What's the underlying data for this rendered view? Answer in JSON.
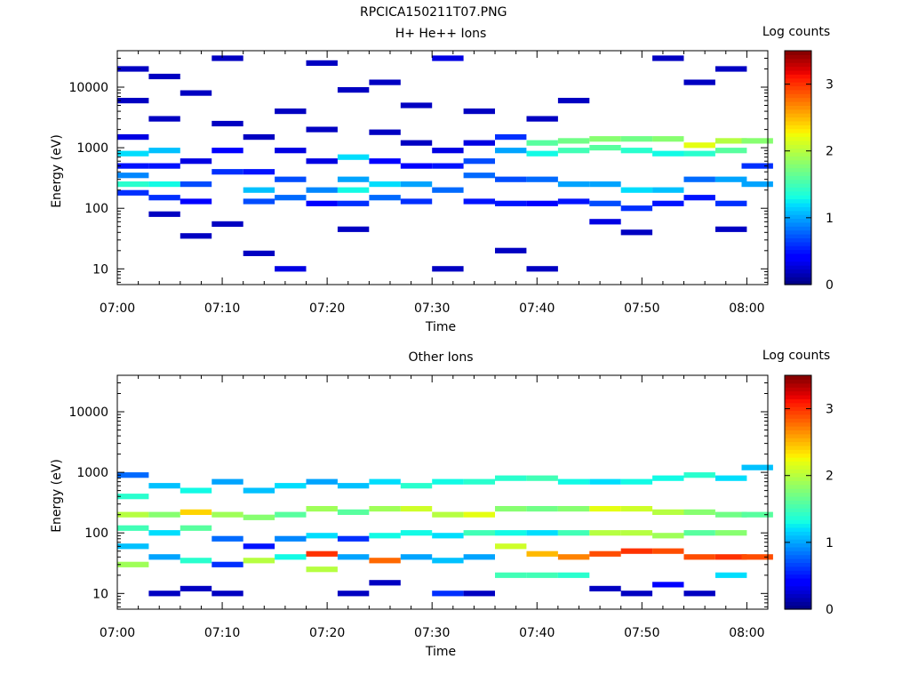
{
  "file_title": "RPCICA150211T07.PNG",
  "chart_data": [
    {
      "type": "heatmap",
      "title": "H+ He++ Ions",
      "xlabel": "Time",
      "ylabel": "Energy (eV)",
      "x_ticks": [
        "07:00",
        "07:10",
        "07:20",
        "07:30",
        "07:40",
        "07:50",
        "08:00"
      ],
      "y_ticks": [
        "10",
        "100",
        "1000",
        "10000"
      ],
      "y_scale": "log",
      "ylim": [
        5.5,
        40000
      ],
      "xlim": [
        "07:00",
        "08:02"
      ],
      "colorbar_label": "Log counts",
      "colorbar_ticks": [
        "0",
        "1",
        "2",
        "3"
      ],
      "colorbar_range": [
        0,
        3.5
      ],
      "colormap": "jet",
      "cells": [
        {
          "t": 1.5,
          "e": 250,
          "v": 1.4
        },
        {
          "t": 1.5,
          "e": 350,
          "v": 0.9
        },
        {
          "t": 1.5,
          "e": 800,
          "v": 1.2
        },
        {
          "t": 1.5,
          "e": 180,
          "v": 0.6
        },
        {
          "t": 1.5,
          "e": 500,
          "v": 0.5
        },
        {
          "t": 1.5,
          "e": 1500,
          "v": 0.3
        },
        {
          "t": 1.5,
          "e": 6000,
          "v": 0.2
        },
        {
          "t": 1.5,
          "e": 20000,
          "v": 0.2
        },
        {
          "t": 4.5,
          "e": 250,
          "v": 1.3
        },
        {
          "t": 4.5,
          "e": 900,
          "v": 1.1
        },
        {
          "t": 4.5,
          "e": 150,
          "v": 0.6
        },
        {
          "t": 4.5,
          "e": 500,
          "v": 0.5
        },
        {
          "t": 4.5,
          "e": 80,
          "v": 0.2
        },
        {
          "t": 4.5,
          "e": 3000,
          "v": 0.2
        },
        {
          "t": 4.5,
          "e": 15000,
          "v": 0.2
        },
        {
          "t": 7.5,
          "e": 250,
          "v": 0.7
        },
        {
          "t": 7.5,
          "e": 130,
          "v": 0.4
        },
        {
          "t": 7.5,
          "e": 35,
          "v": 0.2
        },
        {
          "t": 7.5,
          "e": 600,
          "v": 0.3
        },
        {
          "t": 7.5,
          "e": 8000,
          "v": 0.2
        },
        {
          "t": 10.5,
          "e": 400,
          "v": 0.6
        },
        {
          "t": 10.5,
          "e": 900,
          "v": 0.4
        },
        {
          "t": 10.5,
          "e": 55,
          "v": 0.2
        },
        {
          "t": 10.5,
          "e": 2500,
          "v": 0.2
        },
        {
          "t": 10.5,
          "e": 30000,
          "v": 0.2
        },
        {
          "t": 13.5,
          "e": 200,
          "v": 1.1
        },
        {
          "t": 13.5,
          "e": 130,
          "v": 0.7
        },
        {
          "t": 13.5,
          "e": 400,
          "v": 0.5
        },
        {
          "t": 13.5,
          "e": 18,
          "v": 0.2
        },
        {
          "t": 13.5,
          "e": 1500,
          "v": 0.2
        },
        {
          "t": 16.5,
          "e": 300,
          "v": 0.7
        },
        {
          "t": 16.5,
          "e": 150,
          "v": 0.8
        },
        {
          "t": 16.5,
          "e": 900,
          "v": 0.3
        },
        {
          "t": 16.5,
          "e": 10,
          "v": 0.3
        },
        {
          "t": 16.5,
          "e": 4000,
          "v": 0.2
        },
        {
          "t": 19.5,
          "e": 200,
          "v": 0.9
        },
        {
          "t": 19.5,
          "e": 120,
          "v": 0.4
        },
        {
          "t": 19.5,
          "e": 600,
          "v": 0.3
        },
        {
          "t": 19.5,
          "e": 2000,
          "v": 0.2
        },
        {
          "t": 19.5,
          "e": 25000,
          "v": 0.2
        },
        {
          "t": 22.5,
          "e": 200,
          "v": 1.3
        },
        {
          "t": 22.5,
          "e": 300,
          "v": 1.0
        },
        {
          "t": 22.5,
          "e": 120,
          "v": 0.6
        },
        {
          "t": 22.5,
          "e": 700,
          "v": 1.2
        },
        {
          "t": 22.5,
          "e": 45,
          "v": 0.2
        },
        {
          "t": 22.5,
          "e": 9000,
          "v": 0.2
        },
        {
          "t": 25.5,
          "e": 250,
          "v": 1.2
        },
        {
          "t": 25.5,
          "e": 150,
          "v": 0.8
        },
        {
          "t": 25.5,
          "e": 600,
          "v": 0.4
        },
        {
          "t": 25.5,
          "e": 1800,
          "v": 0.2
        },
        {
          "t": 25.5,
          "e": 12000,
          "v": 0.2
        },
        {
          "t": 28.5,
          "e": 250,
          "v": 1.0
        },
        {
          "t": 28.5,
          "e": 130,
          "v": 0.6
        },
        {
          "t": 28.5,
          "e": 500,
          "v": 0.4
        },
        {
          "t": 28.5,
          "e": 1200,
          "v": 0.2
        },
        {
          "t": 28.5,
          "e": 5000,
          "v": 0.2
        },
        {
          "t": 31.5,
          "e": 200,
          "v": 0.8
        },
        {
          "t": 31.5,
          "e": 500,
          "v": 0.5
        },
        {
          "t": 31.5,
          "e": 10,
          "v": 0.2
        },
        {
          "t": 31.5,
          "e": 900,
          "v": 0.3
        },
        {
          "t": 31.5,
          "e": 30000,
          "v": 0.3
        },
        {
          "t": 34.5,
          "e": 350,
          "v": 0.8
        },
        {
          "t": 34.5,
          "e": 600,
          "v": 0.7
        },
        {
          "t": 34.5,
          "e": 130,
          "v": 0.5
        },
        {
          "t": 34.5,
          "e": 1200,
          "v": 0.3
        },
        {
          "t": 34.5,
          "e": 4000,
          "v": 0.2
        },
        {
          "t": 37.5,
          "e": 900,
          "v": 1.0
        },
        {
          "t": 37.5,
          "e": 300,
          "v": 0.7
        },
        {
          "t": 37.5,
          "e": 120,
          "v": 0.5
        },
        {
          "t": 37.5,
          "e": 1500,
          "v": 0.6
        },
        {
          "t": 37.5,
          "e": 20,
          "v": 0.2
        },
        {
          "t": 40.5,
          "e": 1200,
          "v": 1.6
        },
        {
          "t": 40.5,
          "e": 800,
          "v": 1.3
        },
        {
          "t": 40.5,
          "e": 300,
          "v": 0.8
        },
        {
          "t": 40.5,
          "e": 120,
          "v": 0.4
        },
        {
          "t": 40.5,
          "e": 10,
          "v": 0.2
        },
        {
          "t": 40.5,
          "e": 3000,
          "v": 0.2
        },
        {
          "t": 43.5,
          "e": 1300,
          "v": 1.7
        },
        {
          "t": 43.5,
          "e": 900,
          "v": 1.5
        },
        {
          "t": 43.5,
          "e": 250,
          "v": 1.0
        },
        {
          "t": 43.5,
          "e": 130,
          "v": 0.5
        },
        {
          "t": 43.5,
          "e": 6000,
          "v": 0.2
        },
        {
          "t": 46.5,
          "e": 1400,
          "v": 1.8
        },
        {
          "t": 46.5,
          "e": 1000,
          "v": 1.6
        },
        {
          "t": 46.5,
          "e": 250,
          "v": 1.0
        },
        {
          "t": 46.5,
          "e": 120,
          "v": 0.7
        },
        {
          "t": 46.5,
          "e": 60,
          "v": 0.3
        },
        {
          "t": 49.5,
          "e": 1400,
          "v": 1.7
        },
        {
          "t": 49.5,
          "e": 900,
          "v": 1.4
        },
        {
          "t": 49.5,
          "e": 200,
          "v": 1.2
        },
        {
          "t": 49.5,
          "e": 100,
          "v": 0.6
        },
        {
          "t": 49.5,
          "e": 40,
          "v": 0.2
        },
        {
          "t": 52.5,
          "e": 1400,
          "v": 1.8
        },
        {
          "t": 52.5,
          "e": 800,
          "v": 1.3
        },
        {
          "t": 52.5,
          "e": 200,
          "v": 1.1
        },
        {
          "t": 52.5,
          "e": 120,
          "v": 0.5
        },
        {
          "t": 52.5,
          "e": 30000,
          "v": 0.2
        },
        {
          "t": 55.5,
          "e": 1100,
          "v": 2.2
        },
        {
          "t": 55.5,
          "e": 800,
          "v": 1.4
        },
        {
          "t": 55.5,
          "e": 300,
          "v": 0.8
        },
        {
          "t": 55.5,
          "e": 150,
          "v": 0.5
        },
        {
          "t": 55.5,
          "e": 12000,
          "v": 0.2
        },
        {
          "t": 58.5,
          "e": 1300,
          "v": 2.0
        },
        {
          "t": 58.5,
          "e": 900,
          "v": 1.6
        },
        {
          "t": 58.5,
          "e": 300,
          "v": 1.0
        },
        {
          "t": 58.5,
          "e": 120,
          "v": 0.6
        },
        {
          "t": 58.5,
          "e": 45,
          "v": 0.2
        },
        {
          "t": 58.5,
          "e": 20000,
          "v": 0.2
        },
        {
          "t": 61.0,
          "e": 1300,
          "v": 1.8
        },
        {
          "t": 61.0,
          "e": 250,
          "v": 1.0
        },
        {
          "t": 61.0,
          "e": 500,
          "v": 0.6
        }
      ]
    },
    {
      "type": "heatmap",
      "title": "Other Ions",
      "xlabel": "Time",
      "ylabel": "Energy (eV)",
      "x_ticks": [
        "07:00",
        "07:10",
        "07:20",
        "07:30",
        "07:40",
        "07:50",
        "08:00"
      ],
      "y_ticks": [
        "10",
        "100",
        "1000",
        "10000"
      ],
      "y_scale": "log",
      "ylim": [
        5.5,
        40000
      ],
      "xlim": [
        "07:00",
        "08:02"
      ],
      "colorbar_label": "Log counts",
      "colorbar_ticks": [
        "0",
        "1",
        "2",
        "3"
      ],
      "colorbar_range": [
        0,
        3.5
      ],
      "colormap": "jet",
      "cells": [
        {
          "t": 1.5,
          "e": 200,
          "v": 2.0
        },
        {
          "t": 1.5,
          "e": 120,
          "v": 1.5
        },
        {
          "t": 1.5,
          "e": 400,
          "v": 1.4
        },
        {
          "t": 1.5,
          "e": 60,
          "v": 1.1
        },
        {
          "t": 1.5,
          "e": 30,
          "v": 1.9
        },
        {
          "t": 1.5,
          "e": 900,
          "v": 0.8
        },
        {
          "t": 4.5,
          "e": 200,
          "v": 1.8
        },
        {
          "t": 4.5,
          "e": 100,
          "v": 1.2
        },
        {
          "t": 4.5,
          "e": 40,
          "v": 1.0
        },
        {
          "t": 4.5,
          "e": 600,
          "v": 1.1
        },
        {
          "t": 4.5,
          "e": 10,
          "v": 0.2
        },
        {
          "t": 7.5,
          "e": 220,
          "v": 2.4
        },
        {
          "t": 7.5,
          "e": 120,
          "v": 1.6
        },
        {
          "t": 7.5,
          "e": 35,
          "v": 1.4
        },
        {
          "t": 7.5,
          "e": 500,
          "v": 1.3
        },
        {
          "t": 7.5,
          "e": 12,
          "v": 0.2
        },
        {
          "t": 10.5,
          "e": 200,
          "v": 1.9
        },
        {
          "t": 10.5,
          "e": 80,
          "v": 0.8
        },
        {
          "t": 10.5,
          "e": 30,
          "v": 0.6
        },
        {
          "t": 10.5,
          "e": 700,
          "v": 1.0
        },
        {
          "t": 10.5,
          "e": 10,
          "v": 0.2
        },
        {
          "t": 13.5,
          "e": 180,
          "v": 1.8
        },
        {
          "t": 13.5,
          "e": 60,
          "v": 0.5
        },
        {
          "t": 13.5,
          "e": 35,
          "v": 2.0
        },
        {
          "t": 13.5,
          "e": 500,
          "v": 1.1
        },
        {
          "t": 16.5,
          "e": 200,
          "v": 1.6
        },
        {
          "t": 16.5,
          "e": 80,
          "v": 0.9
        },
        {
          "t": 16.5,
          "e": 40,
          "v": 1.3
        },
        {
          "t": 16.5,
          "e": 600,
          "v": 1.2
        },
        {
          "t": 19.5,
          "e": 250,
          "v": 1.9
        },
        {
          "t": 19.5,
          "e": 45,
          "v": 3.0
        },
        {
          "t": 19.5,
          "e": 90,
          "v": 1.2
        },
        {
          "t": 19.5,
          "e": 700,
          "v": 1.0
        },
        {
          "t": 19.5,
          "e": 25,
          "v": 2.0
        },
        {
          "t": 22.5,
          "e": 220,
          "v": 1.6
        },
        {
          "t": 22.5,
          "e": 80,
          "v": 0.6
        },
        {
          "t": 22.5,
          "e": 40,
          "v": 1.0
        },
        {
          "t": 22.5,
          "e": 600,
          "v": 1.1
        },
        {
          "t": 22.5,
          "e": 10,
          "v": 0.2
        },
        {
          "t": 25.5,
          "e": 250,
          "v": 1.9
        },
        {
          "t": 25.5,
          "e": 35,
          "v": 2.8
        },
        {
          "t": 25.5,
          "e": 90,
          "v": 1.3
        },
        {
          "t": 25.5,
          "e": 700,
          "v": 1.2
        },
        {
          "t": 25.5,
          "e": 15,
          "v": 0.2
        },
        {
          "t": 28.5,
          "e": 250,
          "v": 2.1
        },
        {
          "t": 28.5,
          "e": 100,
          "v": 1.3
        },
        {
          "t": 28.5,
          "e": 40,
          "v": 1.0
        },
        {
          "t": 28.5,
          "e": 600,
          "v": 1.4
        },
        {
          "t": 31.5,
          "e": 200,
          "v": 2.0
        },
        {
          "t": 31.5,
          "e": 90,
          "v": 1.2
        },
        {
          "t": 31.5,
          "e": 35,
          "v": 1.1
        },
        {
          "t": 31.5,
          "e": 700,
          "v": 1.3
        },
        {
          "t": 31.5,
          "e": 10,
          "v": 0.6
        },
        {
          "t": 34.5,
          "e": 200,
          "v": 2.2
        },
        {
          "t": 34.5,
          "e": 100,
          "v": 1.5
        },
        {
          "t": 34.5,
          "e": 40,
          "v": 1.0
        },
        {
          "t": 34.5,
          "e": 700,
          "v": 1.4
        },
        {
          "t": 34.5,
          "e": 10,
          "v": 0.2
        },
        {
          "t": 37.5,
          "e": 250,
          "v": 1.8
        },
        {
          "t": 37.5,
          "e": 60,
          "v": 2.1
        },
        {
          "t": 37.5,
          "e": 100,
          "v": 1.3
        },
        {
          "t": 37.5,
          "e": 800,
          "v": 1.4
        },
        {
          "t": 37.5,
          "e": 20,
          "v": 1.5
        },
        {
          "t": 40.5,
          "e": 250,
          "v": 1.7
        },
        {
          "t": 40.5,
          "e": 45,
          "v": 2.5
        },
        {
          "t": 40.5,
          "e": 100,
          "v": 1.2
        },
        {
          "t": 40.5,
          "e": 800,
          "v": 1.5
        },
        {
          "t": 40.5,
          "e": 20,
          "v": 1.5
        },
        {
          "t": 43.5,
          "e": 250,
          "v": 1.8
        },
        {
          "t": 43.5,
          "e": 40,
          "v": 2.7
        },
        {
          "t": 43.5,
          "e": 100,
          "v": 1.5
        },
        {
          "t": 43.5,
          "e": 700,
          "v": 1.3
        },
        {
          "t": 43.5,
          "e": 20,
          "v": 1.4
        },
        {
          "t": 46.5,
          "e": 250,
          "v": 2.2
        },
        {
          "t": 46.5,
          "e": 45,
          "v": 2.9
        },
        {
          "t": 46.5,
          "e": 100,
          "v": 2.0
        },
        {
          "t": 46.5,
          "e": 700,
          "v": 1.2
        },
        {
          "t": 46.5,
          "e": 12,
          "v": 0.2
        },
        {
          "t": 49.5,
          "e": 250,
          "v": 2.1
        },
        {
          "t": 49.5,
          "e": 50,
          "v": 3.0
        },
        {
          "t": 49.5,
          "e": 100,
          "v": 2.0
        },
        {
          "t": 49.5,
          "e": 700,
          "v": 1.3
        },
        {
          "t": 49.5,
          "e": 10,
          "v": 0.2
        },
        {
          "t": 52.5,
          "e": 220,
          "v": 2.0
        },
        {
          "t": 52.5,
          "e": 50,
          "v": 2.9
        },
        {
          "t": 52.5,
          "e": 90,
          "v": 1.9
        },
        {
          "t": 52.5,
          "e": 800,
          "v": 1.3
        },
        {
          "t": 52.5,
          "e": 14,
          "v": 0.4
        },
        {
          "t": 55.5,
          "e": 220,
          "v": 1.8
        },
        {
          "t": 55.5,
          "e": 40,
          "v": 2.9
        },
        {
          "t": 55.5,
          "e": 100,
          "v": 1.6
        },
        {
          "t": 55.5,
          "e": 900,
          "v": 1.4
        },
        {
          "t": 55.5,
          "e": 10,
          "v": 0.2
        },
        {
          "t": 58.5,
          "e": 200,
          "v": 1.7
        },
        {
          "t": 58.5,
          "e": 40,
          "v": 3.0
        },
        {
          "t": 58.5,
          "e": 100,
          "v": 1.8
        },
        {
          "t": 58.5,
          "e": 800,
          "v": 1.2
        },
        {
          "t": 58.5,
          "e": 20,
          "v": 1.2
        },
        {
          "t": 61.0,
          "e": 200,
          "v": 1.6
        },
        {
          "t": 61.0,
          "e": 40,
          "v": 2.9
        },
        {
          "t": 61.0,
          "e": 1200,
          "v": 1.1
        }
      ]
    }
  ]
}
